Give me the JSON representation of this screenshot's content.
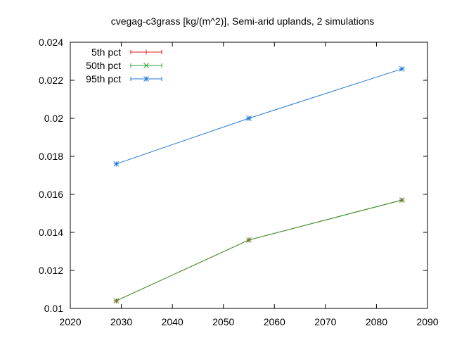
{
  "chart_data": {
    "type": "line",
    "title": "cvegag-c3grass [kg/(m^2)], Semi-arid uplands, 2 simulations",
    "xlabel": "",
    "ylabel": "",
    "xlim": [
      2020,
      2090
    ],
    "ylim": [
      0.01,
      0.024
    ],
    "x_ticks": [
      "2020",
      "2030",
      "2040",
      "2050",
      "2060",
      "2070",
      "2080",
      "2090"
    ],
    "y_ticks": [
      "0.01",
      "0.012",
      "0.014",
      "0.016",
      "0.018",
      "0.02",
      "0.022",
      "0.024"
    ],
    "legend_position": "top-left",
    "grid": false,
    "x": [
      2029,
      2055,
      2085
    ],
    "series": [
      {
        "name": "5th pct",
        "color": "#e41a1c",
        "marker": "plus",
        "values": [
          0.0104,
          0.0136,
          0.0157
        ]
      },
      {
        "name": "50th pct",
        "color": "#2ca02c",
        "marker": "cross",
        "values": [
          0.0104,
          0.0136,
          0.0157
        ]
      },
      {
        "name": "95th pct",
        "color": "#1f78d4",
        "marker": "star",
        "values": [
          0.0176,
          0.02,
          0.0226
        ]
      }
    ]
  }
}
